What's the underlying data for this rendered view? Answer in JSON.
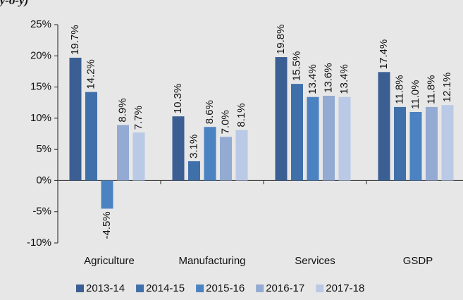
{
  "chart_data": {
    "type": "bar",
    "title": "(y-o-y)",
    "categories": [
      "Agriculture",
      "Manufacturing",
      "Services",
      "GSDP"
    ],
    "series": [
      {
        "name": "2013-14",
        "color": "#3b5f93",
        "values": [
          19.7,
          10.3,
          19.8,
          17.4
        ],
        "value_labels": [
          "19.7%",
          "10.3%",
          "19.8%",
          "17.4%"
        ]
      },
      {
        "name": "2014-15",
        "color": "#4070aa",
        "values": [
          14.2,
          3.1,
          15.5,
          11.8
        ],
        "value_labels": [
          "14.2%",
          "3.1%",
          "15.5%",
          "11.8%"
        ]
      },
      {
        "name": "2015-16",
        "color": "#4b82c2",
        "values": [
          -4.5,
          8.6,
          13.4,
          11.0
        ],
        "value_labels": [
          "-4.5%",
          "8.6%",
          "13.4%",
          "11.0%"
        ]
      },
      {
        "name": "2016-17",
        "color": "#93aad2",
        "values": [
          8.9,
          7.0,
          13.6,
          11.8
        ],
        "value_labels": [
          "8.9%",
          "7.0%",
          "13.6%",
          "11.8%"
        ]
      },
      {
        "name": "2017-18",
        "color": "#bac9e5",
        "values": [
          7.7,
          8.1,
          13.4,
          12.1
        ],
        "value_labels": [
          "7.7%",
          "8.1%",
          "13.4%",
          "12.1%"
        ]
      }
    ],
    "ylim": [
      -10,
      25
    ],
    "yticks": [
      {
        "value": -10,
        "label": "-10%"
      },
      {
        "value": -5,
        "label": "-5%"
      },
      {
        "value": 0,
        "label": "0%"
      },
      {
        "value": 5,
        "label": "5%"
      },
      {
        "value": 10,
        "label": "10%"
      },
      {
        "value": 15,
        "label": "15%"
      },
      {
        "value": 20,
        "label": "20%"
      },
      {
        "value": 25,
        "label": "25%"
      }
    ],
    "grid": false,
    "legend": "bottom"
  }
}
